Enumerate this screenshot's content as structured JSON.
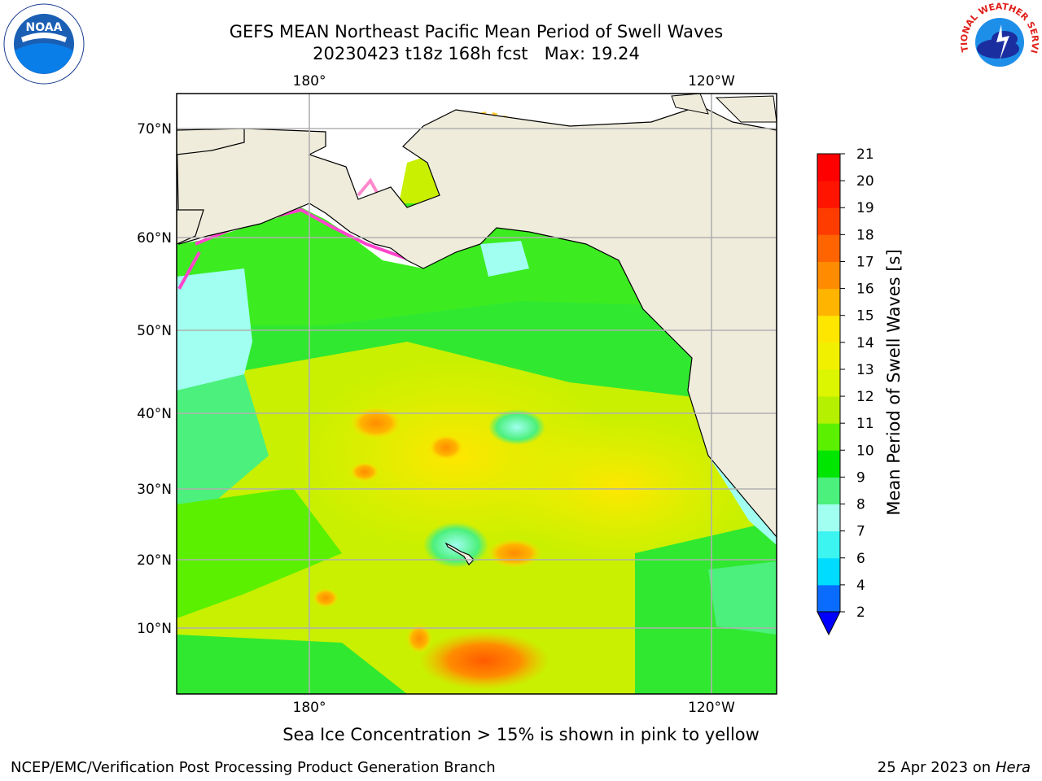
{
  "header": {
    "title_line1": "GEFS MEAN Northeast Pacific Mean Period of Swell Waves",
    "title_line2": "20230423 t18z 168h fcst   Max: 19.24"
  },
  "logos": {
    "left": {
      "icon": "noaa-logo",
      "text": "NOAA"
    },
    "right": {
      "icon": "nws-logo",
      "text": "NATIONAL WEATHER SERVICE"
    }
  },
  "map": {
    "lon_ticks_top": [
      "180°",
      "120°W"
    ],
    "lon_ticks_bottom": [
      "180°",
      "120°W"
    ],
    "lat_ticks": [
      "70°N",
      "60°N",
      "50°N",
      "40°N",
      "30°N",
      "20°N",
      "10°N"
    ],
    "colors": {
      "land": "#efecdc",
      "ice": "#ffffff",
      "grid": "#b0b0b0"
    }
  },
  "colorbar": {
    "label": "Mean Period of Swell Waves [s]",
    "ticks": [
      "2",
      "4",
      "6",
      "7",
      "8",
      "9",
      "10",
      "11",
      "12",
      "13",
      "14",
      "15",
      "16",
      "17",
      "18",
      "19",
      "20",
      "21"
    ],
    "colors": [
      "#0a6cff",
      "#00dcff",
      "#3cf5f0",
      "#a0fff0",
      "#4cf07c",
      "#00e600",
      "#5af000",
      "#b4f000",
      "#dcf500",
      "#f0f000",
      "#ffe600",
      "#ffb400",
      "#ff8c00",
      "#ff6400",
      "#ff3c00",
      "#ff1400",
      "#ff0000"
    ],
    "extend_color": "#0000ff"
  },
  "subtitle": "Sea Ice Concentration > 15% is shown in pink to yellow",
  "footer": {
    "left": "NCEP/EMC/Verification Post Processing Product Generation Branch",
    "right_prefix": "25 Apr 2023 on ",
    "right_host": "Hera"
  }
}
